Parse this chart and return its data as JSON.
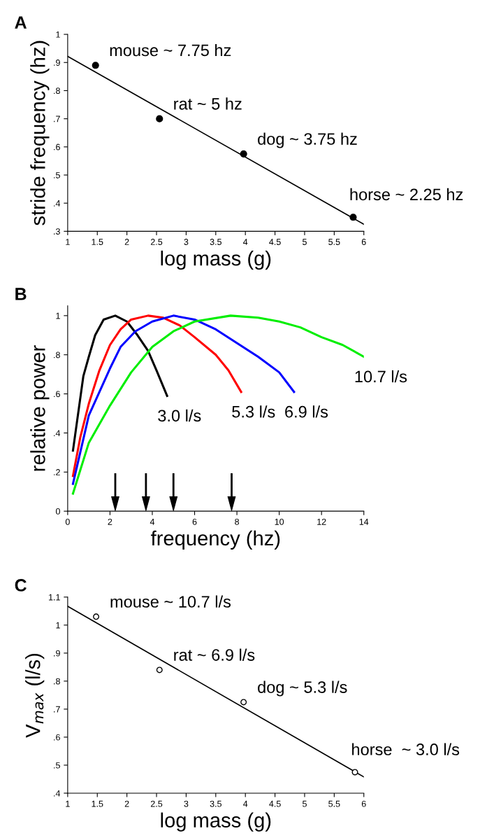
{
  "chart_data": [
    {
      "type": "scatter",
      "title": "A",
      "xlabel": "log mass (g)",
      "ylabel": "stride frequency (hz)",
      "xlim": [
        1,
        6
      ],
      "xticks": [
        1,
        {
          "value": 1.5,
          "label": "1.5"
        },
        2,
        {
          "value": 2.5,
          "label": "2.5"
        },
        3,
        {
          "value": 3.5,
          "label": "3.5"
        },
        4,
        {
          "value": 4.5,
          "label": "4.5"
        },
        5,
        {
          "value": 5.5,
          "label": "5.5"
        },
        6
      ],
      "ylim": [
        0.3,
        1
      ],
      "yticks": [
        {
          "value": 0.3,
          "label": ".3"
        },
        {
          "value": 0.4,
          "label": ".4"
        },
        {
          "value": 0.5,
          "label": ".5"
        },
        {
          "value": 0.6,
          "label": ".6"
        },
        {
          "value": 0.7,
          "label": ".7"
        },
        {
          "value": 0.8,
          "label": ".8"
        },
        {
          "value": 0.9,
          "label": ".9"
        },
        {
          "value": 1,
          "label": "1"
        }
      ],
      "grid": false,
      "legend": false,
      "series": [
        {
          "type": "scatter",
          "color": "#000000",
          "marker": "circle",
          "x": [
            1.47,
            2.55,
            3.97,
            5.82
          ],
          "values": [
            0.89,
            0.7,
            0.575,
            0.35
          ]
        },
        {
          "type": "line",
          "color": "#000000",
          "marker": "none",
          "x": [
            1,
            6
          ],
          "values": [
            0.922,
            0.325
          ]
        }
      ],
      "annotations": [
        {
          "text": "mouse ~ 7.75 hz",
          "x": 1.47,
          "y": 0.89
        },
        {
          "text": "rat ~ 5 hz",
          "x": 2.55,
          "y": 0.7
        },
        {
          "text": "dog ~ 3.75 hz",
          "x": 3.97,
          "y": 0.575
        },
        {
          "text": "horse ~ 2.25 hz",
          "x": 5.82,
          "y": 0.35
        }
      ]
    },
    {
      "type": "line",
      "title": "B",
      "xlabel": "frequency (hz)",
      "ylabel": "relative power",
      "xlim": [
        0,
        14
      ],
      "xticks": [
        0,
        2,
        4,
        6,
        8,
        10,
        12,
        14
      ],
      "ylim": [
        0,
        1.05
      ],
      "yticks": [
        0,
        {
          "value": 0.2,
          "label": ".2"
        },
        {
          "value": 0.4,
          "label": ".4"
        },
        {
          "value": 0.6,
          "label": ".6"
        },
        {
          "value": 0.8,
          "label": ".8"
        },
        {
          "value": 1,
          "label": "1"
        }
      ],
      "marker": "none",
      "line_style": "solid",
      "grid": false,
      "legend": false,
      "series": [
        {
          "name": "3.0 l/s",
          "color": "#000000",
          "x": [
            0.25,
            0.74,
            1,
            1.3,
            1.7,
            2.25,
            2.8,
            3.3,
            3.8,
            4.2,
            4.7
          ],
          "values": [
            0.31,
            0.69,
            0.79,
            0.9,
            0.98,
            1.0,
            0.97,
            0.9,
            0.82,
            0.72,
            0.59
          ]
        },
        {
          "name": "5.3 l/s",
          "color": "#ff0000",
          "x": [
            0.25,
            0.6,
            1,
            1.5,
            2,
            2.5,
            3,
            3.8,
            4.5,
            5.3,
            6,
            7,
            7.6,
            8.2
          ],
          "values": [
            0.18,
            0.38,
            0.55,
            0.72,
            0.85,
            0.93,
            0.98,
            1.0,
            0.99,
            0.95,
            0.89,
            0.8,
            0.72,
            0.61
          ]
        },
        {
          "name": "6.9 l/s",
          "color": "#0000ff",
          "x": [
            0.25,
            1,
            1.5,
            2,
            2.5,
            3.2,
            4,
            5,
            6,
            7,
            8,
            9,
            10,
            10.7
          ],
          "values": [
            0.14,
            0.49,
            0.61,
            0.73,
            0.84,
            0.92,
            0.97,
            1.0,
            0.98,
            0.93,
            0.86,
            0.79,
            0.71,
            0.61
          ]
        },
        {
          "name": "10.7 l/s",
          "color": "#00ee00",
          "x": [
            0.25,
            1,
            2,
            3,
            4,
            5,
            6,
            7.7,
            9,
            10,
            11,
            12,
            13,
            14
          ],
          "values": [
            0.09,
            0.35,
            0.54,
            0.71,
            0.84,
            0.92,
            0.97,
            1.0,
            0.99,
            0.97,
            0.94,
            0.89,
            0.85,
            0.79
          ]
        }
      ],
      "ref_lines": [
        {
          "axis": "x",
          "value": 2.25
        },
        {
          "axis": "x",
          "value": 3.7
        },
        {
          "axis": "x",
          "value": 5.0
        },
        {
          "axis": "x",
          "value": 7.75
        }
      ]
    },
    {
      "type": "scatter",
      "title": "C",
      "xlabel": "log mass (g)",
      "ylabel": "V$_{max}$ (l/s)",
      "xlim": [
        1,
        6
      ],
      "xticks": [
        1,
        {
          "value": 1.5,
          "label": "1.5"
        },
        2,
        {
          "value": 2.5,
          "label": "2.5"
        },
        3,
        {
          "value": 3.5,
          "label": "3.5"
        },
        4,
        {
          "value": 4.5,
          "label": "4.5"
        },
        5,
        {
          "value": 5.5,
          "label": "5.5"
        },
        6
      ],
      "ylim": [
        0.4,
        1.1
      ],
      "yticks": [
        {
          "value": 0.4,
          "label": ".4"
        },
        {
          "value": 0.5,
          "label": ".5"
        },
        {
          "value": 0.6,
          "label": ".6"
        },
        {
          "value": 0.7,
          "label": ".7"
        },
        {
          "value": 0.8,
          "label": ".8"
        },
        {
          "value": 0.9,
          "label": ".9"
        },
        1,
        {
          "value": 1.1,
          "label": "1.1"
        }
      ],
      "grid": false,
      "legend": false,
      "series": [
        {
          "type": "scatter",
          "color": "#000000",
          "marker": "circle",
          "x": [
            1.48,
            2.55,
            3.97,
            5.85
          ],
          "values": [
            1.03,
            0.84,
            0.725,
            0.475
          ]
        },
        {
          "type": "line",
          "color": "#000000",
          "marker": "none",
          "x": [
            1,
            6
          ],
          "values": [
            1.067,
            0.458
          ]
        }
      ],
      "annotations": [
        {
          "text": "mouse ~ 10.7 l/s",
          "x": 1.48,
          "y": 1.03
        },
        {
          "text": "rat ~ 6.9 l/s",
          "x": 2.55,
          "y": 0.84
        },
        {
          "text": "dog ~ 5.3 l/s",
          "x": 3.97,
          "y": 0.725
        },
        {
          "text": "horse  ~ 3.0 l/s",
          "x": 5.85,
          "y": 0.475
        }
      ]
    }
  ]
}
